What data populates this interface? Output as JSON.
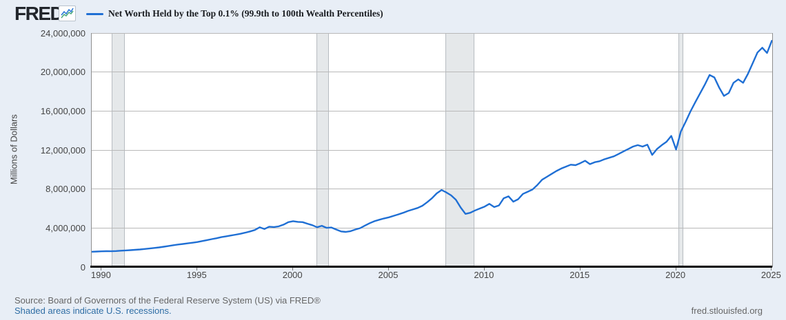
{
  "header": {
    "logo": "FRED",
    "registered_mark": "®",
    "legend": {
      "label": "Net Worth Held by the Top 0.1% (99.9th to 100th Wealth Percentiles)",
      "swatch_color": "#1f6fd4"
    }
  },
  "chart_data": {
    "type": "line",
    "title": "Net Worth Held by the Top 0.1% (99.9th to 100th Wealth Percentiles)",
    "ylabel": "Millions of Dollars",
    "xlabel": "",
    "frequency": "Quarterly",
    "x_start": 1989.5,
    "x_step": 0.25,
    "xlim": [
      1989.48,
      2025.02
    ],
    "ylim": [
      0,
      24000000
    ],
    "x_ticks": [
      1990,
      1995,
      2000,
      2005,
      2010,
      2015,
      2020,
      2025
    ],
    "y_ticks": [
      24000000,
      20000000,
      16000000,
      12000000,
      8000000,
      4000000,
      0
    ],
    "y_tick_labels": [
      "24,000,000",
      "20,000,000",
      "16,000,000",
      "12,000,000",
      "8,000,000",
      "4,000,000",
      "0"
    ],
    "grid": "horizontal",
    "legend_position": "top",
    "line_color": "#1f6fd4",
    "recession_band_color": "#e5e8ea",
    "recession_bands": [
      [
        1990.54,
        1991.21
      ],
      [
        2001.21,
        2001.87
      ],
      [
        2007.96,
        2009.46
      ],
      [
        2020.12,
        2020.37
      ]
    ],
    "series": [
      {
        "name": "Net Worth Held by the Top 0.1% (99.9th to 100th Wealth Percentiles)",
        "values": [
          1570000,
          1590000,
          1610000,
          1625000,
          1615000,
          1635000,
          1670000,
          1700000,
          1730000,
          1765000,
          1800000,
          1850000,
          1900000,
          1955000,
          2010000,
          2085000,
          2160000,
          2240000,
          2305000,
          2365000,
          2425000,
          2490000,
          2560000,
          2660000,
          2760000,
          2860000,
          2950000,
          3060000,
          3150000,
          3230000,
          3320000,
          3410000,
          3520000,
          3650000,
          3800000,
          4070000,
          3900000,
          4140000,
          4100000,
          4170000,
          4350000,
          4600000,
          4700000,
          4630000,
          4600000,
          4440000,
          4290000,
          4080000,
          4230000,
          4020000,
          4050000,
          3850000,
          3650000,
          3600000,
          3680000,
          3850000,
          3990000,
          4250000,
          4500000,
          4700000,
          4850000,
          4980000,
          5100000,
          5250000,
          5400000,
          5560000,
          5750000,
          5900000,
          6060000,
          6280000,
          6650000,
          7050000,
          7550000,
          7900000,
          7650000,
          7350000,
          6900000,
          6100000,
          5450000,
          5560000,
          5800000,
          6000000,
          6200000,
          6480000,
          6150000,
          6320000,
          7050000,
          7250000,
          6700000,
          6950000,
          7500000,
          7720000,
          7950000,
          8400000,
          8950000,
          9250000,
          9550000,
          9850000,
          10100000,
          10300000,
          10500000,
          10450000,
          10650000,
          10900000,
          10550000,
          10750000,
          10850000,
          11050000,
          11200000,
          11350000,
          11600000,
          11850000,
          12100000,
          12350000,
          12500000,
          12350000,
          12550000,
          11500000,
          12100000,
          12500000,
          12850000,
          13450000,
          12050000,
          13900000,
          14900000,
          15950000,
          16900000,
          17800000,
          18700000,
          19700000,
          19450000,
          18400000,
          17550000,
          17850000,
          18900000,
          19250000,
          18900000,
          19800000,
          20900000,
          22000000,
          22500000,
          21950000,
          23200000
        ]
      }
    ]
  },
  "footer": {
    "source": "Source: Board of Governors of the Federal Reserve System (US) via FRED®",
    "recession_note": "Shaded areas indicate U.S. recessions.",
    "site": "fred.stlouisfed.org"
  }
}
